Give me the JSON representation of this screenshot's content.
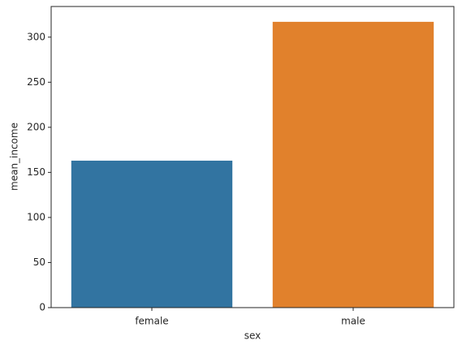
{
  "chart_data": {
    "type": "bar",
    "x_label": "sex",
    "y_label": "mean_income",
    "categories": [
      "female",
      "male"
    ],
    "values": [
      163,
      317
    ],
    "colors": [
      "#3274a1",
      "#e1812c"
    ],
    "ylim": [
      0,
      334
    ],
    "yticks": [
      0,
      50,
      100,
      150,
      200,
      250,
      300
    ],
    "grid": false
  }
}
